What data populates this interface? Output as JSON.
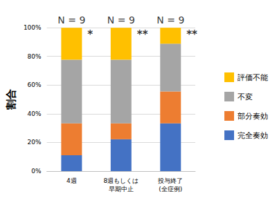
{
  "chart_data": {
    "type": "bar",
    "stacked": true,
    "grid": true,
    "legend": "right",
    "y_label": "割合",
    "categories": [
      "4週",
      "8週もしくは\n早期中止",
      "投与終了\n(全症例)"
    ],
    "series": [
      {
        "name": "完全奏効",
        "color": "#4472c4",
        "values": [
          11.1,
          22.2,
          33.3
        ]
      },
      {
        "name": "部分奏効",
        "color": "#ed7d31",
        "values": [
          22.2,
          11.1,
          22.2
        ]
      },
      {
        "name": "不変",
        "color": "#a5a5a5",
        "values": [
          44.4,
          44.4,
          33.3
        ]
      },
      {
        "name": "評価不能",
        "color": "#ffc000",
        "values": [
          22.2,
          22.2,
          11.1
        ]
      }
    ],
    "ylim": [
      0,
      100
    ],
    "yticks": [
      {
        "value": 0,
        "label": "0%"
      },
      {
        "value": 20,
        "label": "20%"
      },
      {
        "value": 40,
        "label": "40%"
      },
      {
        "value": 60,
        "label": "60%"
      },
      {
        "value": 80,
        "label": "80%"
      },
      {
        "value": 100,
        "label": "100%"
      }
    ],
    "bar_top_labels": [
      "N = 9",
      "N = 9",
      "N = 9"
    ],
    "significance": [
      "*",
      "**",
      "**"
    ]
  }
}
